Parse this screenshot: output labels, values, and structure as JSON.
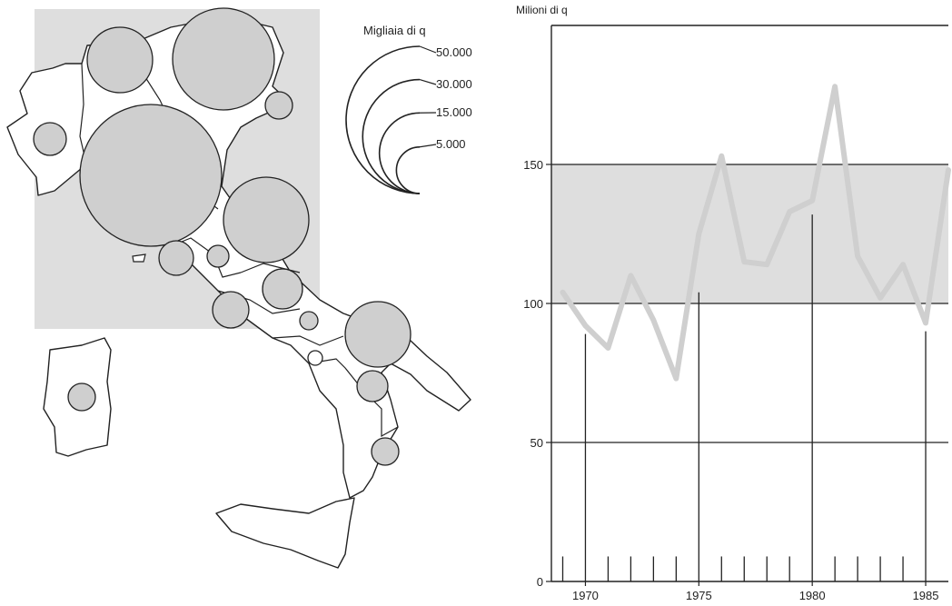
{
  "colors": {
    "ink": "#222222",
    "bubble_fill": "#cfcfcf",
    "shade": "#dedede",
    "series_line": "#cfcfcf",
    "background": "#ffffff"
  },
  "map": {
    "legend_title": "Migliaia di q",
    "legend_values": [
      50000,
      30000,
      15000,
      5000
    ],
    "legend_labels": [
      "50.000",
      "30.000",
      "15.000",
      "5.000"
    ]
  },
  "chart_data": [
    {
      "type": "bubble-map",
      "legend_title": "Migliaia di q",
      "legend_values": [
        50000,
        30000,
        15000,
        5000
      ],
      "legend_labels": [
        "50.000",
        "30.000",
        "15.000",
        "5.000"
      ]
    },
    {
      "type": "line",
      "title": "",
      "ylabel": "Milioni di q",
      "xlabel": "",
      "xlim": [
        1968.5,
        1986
      ],
      "ylim": [
        0,
        200
      ],
      "x_ticks": [
        1970,
        1975,
        1980,
        1985
      ],
      "x_tick_labels": [
        "1970",
        "1975",
        "1980",
        "1985"
      ],
      "y_ticks": [
        0,
        50,
        100,
        150
      ],
      "y_tick_labels": [
        "0",
        "50",
        "100",
        "150"
      ],
      "grid": "horizontal",
      "series": [
        {
          "x": [
            1969,
            1970,
            1971,
            1972,
            1973,
            1974,
            1975,
            1976,
            1977,
            1978,
            1979,
            1980,
            1981,
            1982,
            1983,
            1984,
            1985,
            1986
          ],
          "values": [
            104,
            92,
            84,
            110,
            94,
            73,
            125,
            153,
            115,
            114,
            133,
            137,
            178,
            117,
            102,
            114,
            93,
            148
          ]
        }
      ],
      "year_bars": {
        "x": [
          1969,
          1970,
          1971,
          1972,
          1973,
          1974,
          1975,
          1976,
          1977,
          1978,
          1979,
          1980,
          1981,
          1982,
          1983,
          1984,
          1985
        ],
        "values": [
          9,
          89,
          9,
          9,
          9,
          9,
          104,
          9,
          9,
          9,
          9,
          132,
          9,
          9,
          9,
          9,
          90
        ]
      },
      "shaded_band": [
        100,
        150
      ]
    }
  ]
}
